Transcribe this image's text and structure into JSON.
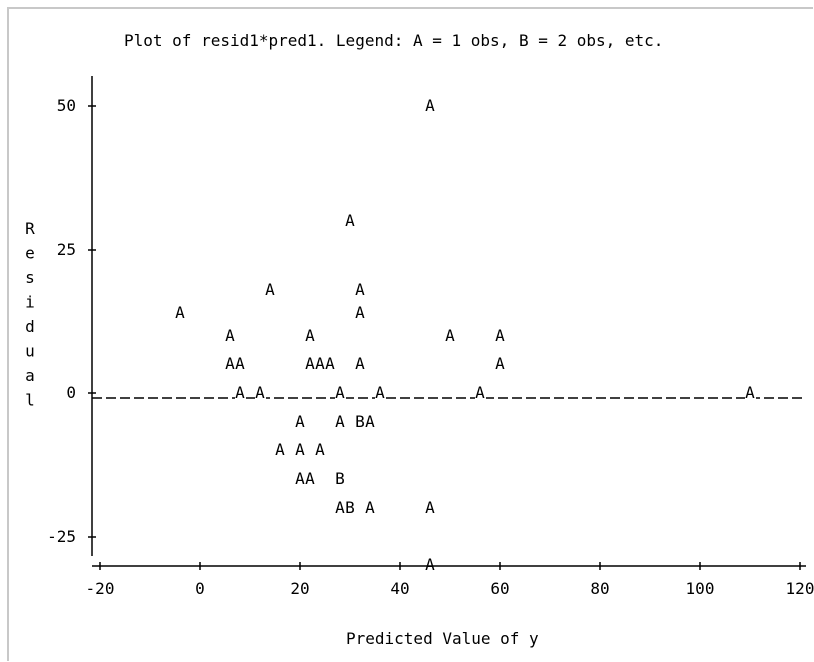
{
  "chart_data": {
    "type": "scatter",
    "title": "Plot of resid1*pred1.  Legend: A = 1 obs, B = 2 obs, etc.",
    "xlabel": "Predicted Value of y",
    "ylabel": "Residual",
    "xlim": [
      -20,
      120
    ],
    "ylim": [
      -25,
      50
    ],
    "xticks": [
      "-20",
      "0",
      "20",
      "40",
      "60",
      "80",
      "100",
      "120"
    ],
    "yticks": [
      "50",
      "25",
      "0",
      "-25"
    ],
    "x_tick_values": [
      -20,
      0,
      20,
      40,
      60,
      80,
      100,
      120
    ],
    "y_tick_values": [
      50,
      25,
      0,
      -25
    ],
    "zero_line": true,
    "points": [
      {
        "x": 46,
        "y": 50,
        "label": "A"
      },
      {
        "x": 30,
        "y": 30,
        "label": "A"
      },
      {
        "x": 14,
        "y": 18,
        "label": "A"
      },
      {
        "x": 32,
        "y": 18,
        "label": "A"
      },
      {
        "x": -4,
        "y": 14,
        "label": "A"
      },
      {
        "x": 32,
        "y": 14,
        "label": "A"
      },
      {
        "x": 6,
        "y": 10,
        "label": "A"
      },
      {
        "x": 22,
        "y": 10,
        "label": "A"
      },
      {
        "x": 50,
        "y": 10,
        "label": "A"
      },
      {
        "x": 60,
        "y": 10,
        "label": "A"
      },
      {
        "x": 6,
        "y": 5,
        "label": "A"
      },
      {
        "x": 8,
        "y": 5,
        "label": "A"
      },
      {
        "x": 22,
        "y": 5,
        "label": "A"
      },
      {
        "x": 24,
        "y": 5,
        "label": "A"
      },
      {
        "x": 26,
        "y": 5,
        "label": "A"
      },
      {
        "x": 32,
        "y": 5,
        "label": "A"
      },
      {
        "x": 60,
        "y": 5,
        "label": "A"
      },
      {
        "x": 8,
        "y": 0,
        "label": "A"
      },
      {
        "x": 12,
        "y": 0,
        "label": "A"
      },
      {
        "x": 28,
        "y": 0,
        "label": "A"
      },
      {
        "x": 36,
        "y": 0,
        "label": "A"
      },
      {
        "x": 56,
        "y": 0,
        "label": "A"
      },
      {
        "x": 110,
        "y": 0,
        "label": "A"
      },
      {
        "x": 20,
        "y": -5,
        "label": "A"
      },
      {
        "x": 28,
        "y": -5,
        "label": "A"
      },
      {
        "x": 32,
        "y": -5,
        "label": "B"
      },
      {
        "x": 34,
        "y": -5,
        "label": "A"
      },
      {
        "x": 16,
        "y": -10,
        "label": "A"
      },
      {
        "x": 20,
        "y": -10,
        "label": "A"
      },
      {
        "x": 24,
        "y": -10,
        "label": "A"
      },
      {
        "x": 20,
        "y": -15,
        "label": "A"
      },
      {
        "x": 22,
        "y": -15,
        "label": "A"
      },
      {
        "x": 28,
        "y": -15,
        "label": "B"
      },
      {
        "x": 28,
        "y": -20,
        "label": "A"
      },
      {
        "x": 30,
        "y": -20,
        "label": "B"
      },
      {
        "x": 34,
        "y": -20,
        "label": "A"
      },
      {
        "x": 46,
        "y": -20,
        "label": "A"
      },
      {
        "x": 46,
        "y": -30,
        "label": "A"
      }
    ]
  }
}
